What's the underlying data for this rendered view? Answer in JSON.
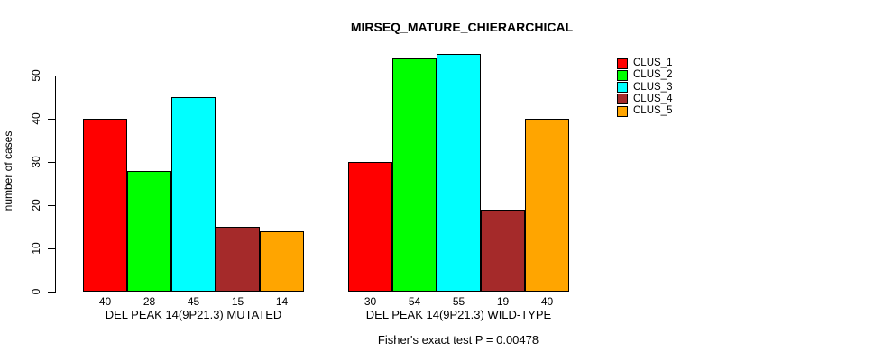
{
  "chart_data": {
    "type": "bar",
    "title": "MIRSEQ_MATURE_CHIERARCHICAL",
    "ylabel": "number of cases",
    "xlabel": "",
    "ylim": [
      0,
      55
    ],
    "yticks": [
      0,
      10,
      20,
      30,
      40,
      50
    ],
    "grid": false,
    "legend_position": "right",
    "categories": [
      "DEL PEAK 14(9P21.3) MUTATED",
      "DEL PEAK 14(9P21.3) WILD-TYPE"
    ],
    "series": [
      {
        "name": "CLUS_1",
        "color": "#FF0000",
        "values": [
          40,
          30
        ]
      },
      {
        "name": "CLUS_2",
        "color": "#00FF00",
        "values": [
          28,
          54
        ]
      },
      {
        "name": "CLUS_3",
        "color": "#00FFFF",
        "values": [
          45,
          55
        ]
      },
      {
        "name": "CLUS_4",
        "color": "#A52A2A",
        "values": [
          15,
          19
        ]
      },
      {
        "name": "CLUS_5",
        "color": "#FFA500",
        "values": [
          14,
          40
        ]
      }
    ],
    "bar_value_labels_shown": true,
    "annotation": "Fisher's exact test P = 0.00478"
  }
}
